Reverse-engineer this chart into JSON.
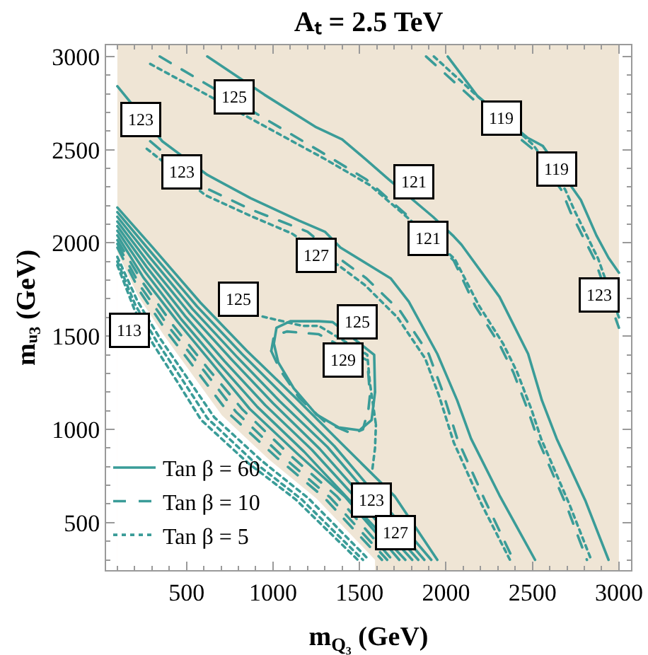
{
  "chart_data": {
    "type": "line",
    "title": "Aₜ = 2.5 TeV",
    "xlabel": "m$_{Q₃}$ (GeV)",
    "ylabel": "mᵤ₃ (GeV)",
    "xlim": [
      35,
      3070
    ],
    "ylim": [
      245,
      3060
    ],
    "xticks": [
      {
        "value": 100,
        "label": null
      },
      {
        "value": 200,
        "label": null
      },
      {
        "value": 300,
        "label": null
      },
      {
        "value": 400,
        "label": null
      },
      500,
      {
        "value": 600,
        "label": null
      },
      {
        "value": 700,
        "label": null
      },
      {
        "value": 800,
        "label": null
      },
      {
        "value": 900,
        "label": null
      },
      1000,
      {
        "value": 1100,
        "label": null
      },
      {
        "value": 1200,
        "label": null
      },
      {
        "value": 1300,
        "label": null
      },
      {
        "value": 1400,
        "label": null
      },
      1500,
      {
        "value": 1600,
        "label": null
      },
      {
        "value": 1700,
        "label": null
      },
      {
        "value": 1800,
        "label": null
      },
      {
        "value": 1900,
        "label": null
      },
      2000,
      {
        "value": 2100,
        "label": null
      },
      {
        "value": 2200,
        "label": null
      },
      {
        "value": 2300,
        "label": null
      },
      {
        "value": 2400,
        "label": null
      },
      2500,
      {
        "value": 2600,
        "label": null
      },
      {
        "value": 2700,
        "label": null
      },
      {
        "value": 2800,
        "label": null
      },
      {
        "value": 2900,
        "label": null
      },
      3000
    ],
    "yticks": [
      {
        "value": 300,
        "label": null
      },
      {
        "value": 400,
        "label": null
      },
      500,
      {
        "value": 600,
        "label": null
      },
      {
        "value": 700,
        "label": null
      },
      {
        "value": 800,
        "label": null
      },
      {
        "value": 900,
        "label": null
      },
      1000,
      {
        "value": 1100,
        "label": null
      },
      {
        "value": 1200,
        "label": null
      },
      {
        "value": 1300,
        "label": null
      },
      {
        "value": 1400,
        "label": null
      },
      1500,
      {
        "value": 1600,
        "label": null
      },
      {
        "value": 1700,
        "label": null
      },
      {
        "value": 1800,
        "label": null
      },
      {
        "value": 1900,
        "label": null
      },
      2000,
      {
        "value": 2100,
        "label": null
      },
      {
        "value": 2200,
        "label": null
      },
      {
        "value": 2300,
        "label": null
      },
      {
        "value": 2400,
        "label": null
      },
      2500,
      {
        "value": 2600,
        "label": null
      },
      {
        "value": 2700,
        "label": null
      },
      {
        "value": 2800,
        "label": null
      },
      {
        "value": 2900,
        "label": null
      },
      3000
    ],
    "legend": "bottom left",
    "bands": [
      {
        "axis": "x",
        "from": 100,
        "to": 3000,
        "color": "#efe5d5"
      }
    ],
    "series": [
      {
        "type": "area",
        "color": "#ffffff",
        "x": [
          100,
          220,
          365,
          540,
          705,
          975,
          1250,
          1590
        ],
        "values": [
          1950,
          1715,
          1510,
          1285,
          1075,
          840,
          630,
          300
        ]
      },
      {
        "name": "Tan β = 60",
        "color": "#3a9c98",
        "line_style": "solid",
        "x": [
          2010,
          2180,
          2470,
          2560,
          2780,
          2870,
          2940,
          3000,
          null,
          620,
          950,
          1250,
          1400,
          1540,
          1670,
          1925,
          2045,
          2090,
          2310,
          2475,
          2555,
          2640,
          2805,
          2940,
          null,
          100,
          360,
          620,
          870,
          1150,
          1300,
          1390,
          1680,
          1785,
          1950,
          2065,
          2145,
          2310,
          2515,
          null,
          1005,
          1020,
          1100,
          1265,
          1345,
          1585,
          1590,
          null,
          1005,
          1030,
          1120,
          1250,
          1380,
          1500,
          1570,
          1590,
          null,
          100,
          300,
          580,
          850,
          1130,
          1400,
          1705,
          1950,
          null,
          100,
          290,
          560,
          820,
          1085,
          1355,
          1915,
          null,
          100,
          285,
          535,
          785,
          1040,
          1315,
          1875,
          null,
          100,
          275,
          515,
          755,
          1000,
          1270,
          1840,
          null,
          100,
          270,
          490,
          720,
          955,
          1225,
          1805,
          null,
          100,
          260,
          470,
          690,
          910,
          1180,
          1765,
          null,
          100,
          250,
          450,
          660,
          865,
          1140,
          1415,
          1730
        ],
        "values": [
          3000,
          2790,
          2565,
          2520,
          2230,
          2040,
          1920,
          1840,
          null,
          3000,
          2795,
          2620,
          2555,
          2445,
          2340,
          2140,
          2035,
          1990,
          1710,
          1405,
          1155,
          950,
          620,
          300,
          null,
          2840,
          2545,
          2365,
          2240,
          2120,
          2060,
          1975,
          1810,
          1685,
          1405,
          1155,
          950,
          645,
          300,
          null,
          1460,
          1545,
          1580,
          1580,
          1575,
          1400,
          1200,
          null,
          1460,
          1360,
          1220,
          1080,
          1010,
          995,
          1050,
          1200,
          null,
          2190,
          1980,
          1680,
          1420,
          1170,
          920,
          640,
          300,
          null,
          2165,
          1955,
          1660,
          1405,
          1160,
          910,
          300,
          null,
          2140,
          1925,
          1645,
          1395,
          1150,
          905,
          300,
          null,
          2115,
          1900,
          1625,
          1380,
          1140,
          895,
          300,
          null,
          2090,
          1870,
          1610,
          1365,
          1130,
          890,
          300,
          null,
          2065,
          1845,
          1590,
          1350,
          1120,
          880,
          300,
          null,
          2040,
          1815,
          1575,
          1340,
          1110,
          870,
          640,
          300
        ]
      },
      {
        "name": "Tan β = 10",
        "color": "#3a9c98",
        "line_style": "dashed",
        "x": [
          1885,
          2170,
          2440,
          2500,
          2670,
          2720,
          2860,
          3000,
          null,
          345,
          1265,
          1540,
          1785,
          2045,
          2170,
          2310,
          2390,
          2475,
          2530,
          2695,
          2815,
          null,
          290,
          620,
          870,
          1200,
          1400,
          1540,
          1735,
          1900,
          1980,
          2065,
          2225,
          2390,
          null,
          990,
          1005,
          1080,
          1265,
          1545,
          1555,
          1560,
          null,
          990,
          1040,
          1150,
          1300,
          1460,
          1520,
          1552,
          1560,
          null,
          100,
          245,
          425,
          625,
          825,
          1095,
          1370,
          1690,
          null,
          100,
          235,
          405,
          600,
          785,
          1055,
          1330,
          1660,
          null,
          100,
          230,
          385,
          570,
          745,
          1020,
          1295,
          1630
        ],
        "values": [
          3000,
          2760,
          2550,
          2505,
          2280,
          2165,
          1910,
          1545,
          null,
          3000,
          2495,
          2340,
          2140,
          1905,
          1660,
          1455,
          1305,
          1100,
          950,
          595,
          300,
          null,
          2545,
          2290,
          2180,
          2060,
          1905,
          1810,
          1635,
          1405,
          1205,
          950,
          620,
          300,
          null,
          1420,
          1500,
          1525,
          1510,
          1370,
          1250,
          1180,
          null,
          1420,
          1320,
          1170,
          1040,
          975,
          1000,
          1110,
          1180,
          null,
          2015,
          1790,
          1555,
          1325,
          1105,
          865,
          640,
          300,
          null,
          1995,
          1765,
          1540,
          1315,
          1095,
          855,
          635,
          300,
          null,
          1975,
          1740,
          1525,
          1300,
          1085,
          850,
          635,
          300
        ]
      },
      {
        "name": "Tan β = 5",
        "color": "#3a9c98",
        "line_style": "dotted",
        "x": [
          1930,
          2190,
          2470,
          2505,
          2690,
          2745,
          2880,
          3000,
          null,
          290,
          1300,
          1560,
          1760,
          2050,
          2190,
          2330,
          2410,
          2495,
          2550,
          2715,
          2840,
          null,
          270,
          610,
          870,
          1110,
          1400,
          1530,
          1720,
          1880,
          1960,
          2045,
          2205,
          2370,
          null,
          940,
          1170,
          1265,
          1545,
          1560,
          1595,
          null,
          1575,
          1590,
          1595,
          null,
          100,
          215,
          345,
          505,
          660,
          930,
          1205,
          1555,
          null,
          100,
          205,
          325,
          480,
          620,
          890,
          1165,
          1520,
          null,
          100,
          200,
          305,
          450,
          585,
          855,
          1130,
          1490
        ],
        "values": [
          3000,
          2780,
          2555,
          2525,
          2285,
          2170,
          1915,
          1600,
          null,
          2960,
          2450,
          2310,
          2150,
          1915,
          1665,
          1460,
          1310,
          1105,
          950,
          595,
          300,
          null,
          2505,
          2255,
          2145,
          2050,
          1865,
          1775,
          1600,
          1380,
          1180,
          930,
          600,
          300,
          null,
          1605,
          1555,
          1555,
          1400,
          1250,
          1025,
          null,
          790,
          900,
          1025,
          null,
          1925,
          1690,
          1490,
          1275,
          1065,
          835,
          630,
          300,
          null,
          1900,
          1665,
          1475,
          1260,
          1060,
          825,
          625,
          300,
          null,
          1880,
          1640,
          1460,
          1250,
          1050,
          820,
          625,
          300
        ]
      }
    ],
    "annotations": [
      {
        "text": "123",
        "x": 235,
        "y": 2660
      },
      {
        "text": "125",
        "x": 775,
        "y": 2785
      },
      {
        "text": "119",
        "x": 2325,
        "y": 2670
      },
      {
        "text": "123",
        "x": 470,
        "y": 2380
      },
      {
        "text": "119",
        "x": 2640,
        "y": 2395
      },
      {
        "text": "121",
        "x": 1815,
        "y": 2330
      },
      {
        "text": "121",
        "x": 1900,
        "y": 2025
      },
      {
        "text": "127",
        "x": 1250,
        "y": 1935
      },
      {
        "text": "123",
        "x": 2885,
        "y": 1720
      },
      {
        "text": "125",
        "x": 800,
        "y": 1695
      },
      {
        "text": "125",
        "x": 1485,
        "y": 1580
      },
      {
        "text": "113",
        "x": 170,
        "y": 1530
      },
      {
        "text": "129",
        "x": 1405,
        "y": 1370
      },
      {
        "text": "123",
        "x": 1570,
        "y": 620
      },
      {
        "text": "127",
        "x": 1705,
        "y": 445
      }
    ]
  }
}
